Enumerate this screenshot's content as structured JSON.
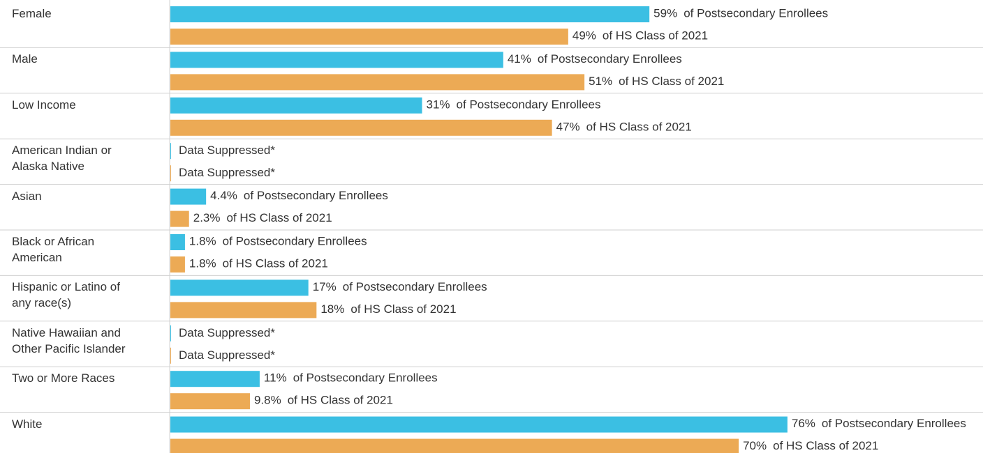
{
  "chart_data": {
    "type": "bar",
    "orientation": "horizontal",
    "categories": [
      "Female",
      "Male",
      "Low Income",
      "American Indian or Alaska Native",
      "Asian",
      "Black or African American",
      "Hispanic or Latino of any race(s)",
      "Native Hawaiian and Other Pacific Islander",
      "Two or More Races",
      "White"
    ],
    "series": [
      {
        "name": "of Postsecondary Enrollees",
        "color": "#3bbfe3",
        "values": [
          59,
          41,
          31,
          null,
          4.4,
          1.8,
          17,
          null,
          11,
          76
        ],
        "value_labels": [
          "59%",
          "41%",
          "31%",
          "Data Suppressed*",
          "4.4%",
          "1.8%",
          "17%",
          "Data Suppressed*",
          "11%",
          "76%"
        ]
      },
      {
        "name": "of HS Class of 2021",
        "color": "#ecaa55",
        "values": [
          49,
          51,
          47,
          null,
          2.3,
          1.8,
          18,
          null,
          9.8,
          70
        ],
        "value_labels": [
          "49%",
          "51%",
          "47%",
          "Data Suppressed*",
          "2.3%",
          "1.8%",
          "18%",
          "Data Suppressed*",
          "9.8%",
          "70%"
        ]
      }
    ],
    "xlim": [
      0,
      100
    ]
  }
}
